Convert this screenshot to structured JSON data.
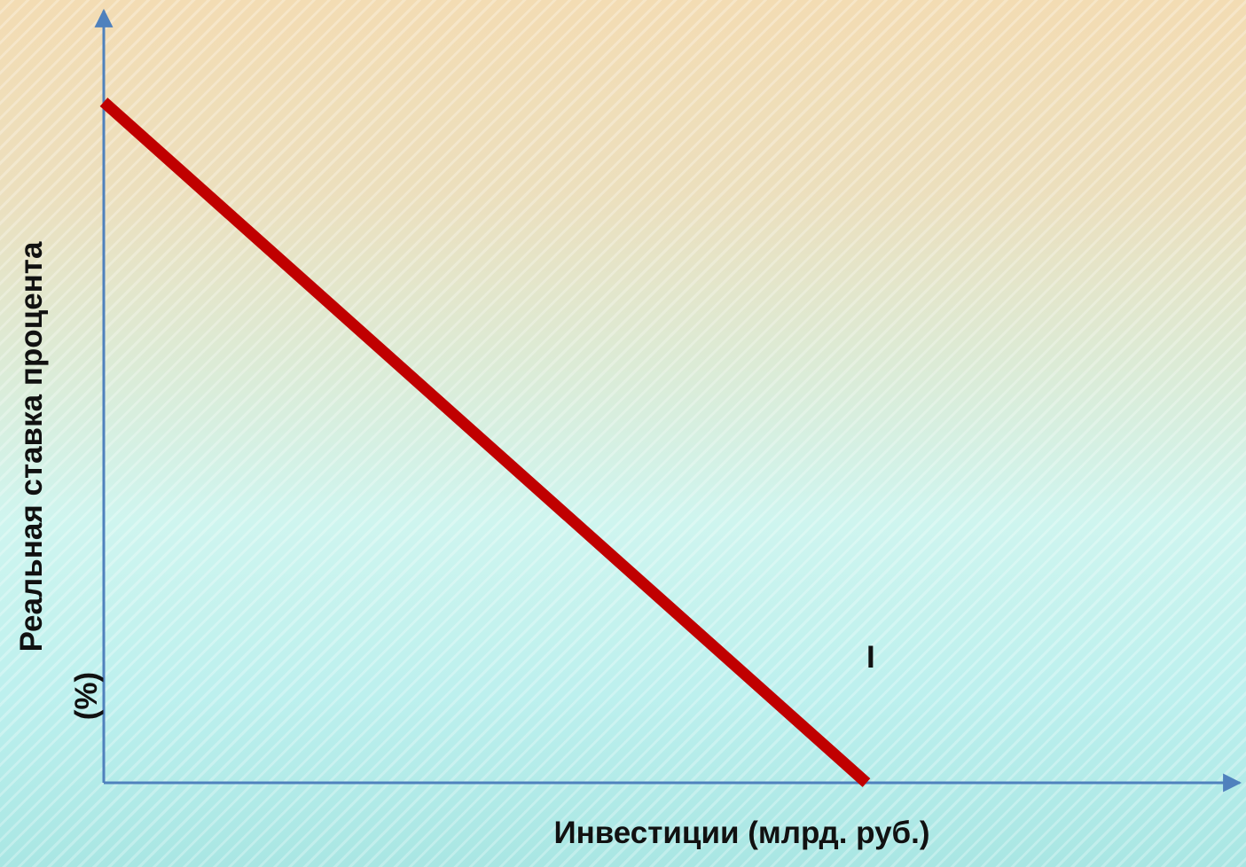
{
  "chart_data": {
    "type": "line",
    "title": "",
    "xlabel": "Инвестиции (млрд. руб.)",
    "ylabel_lines": [
      "Реальная ставка процента",
      "(%)"
    ],
    "series": [
      {
        "name": "I",
        "color": "#c00000",
        "points": [
          {
            "x": 0,
            "y": 100
          },
          {
            "x": 100,
            "y": 0
          }
        ]
      }
    ],
    "xlim": [
      0,
      150
    ],
    "ylim": [
      0,
      120
    ],
    "grid": false,
    "axis_color": "#4f81bd"
  }
}
